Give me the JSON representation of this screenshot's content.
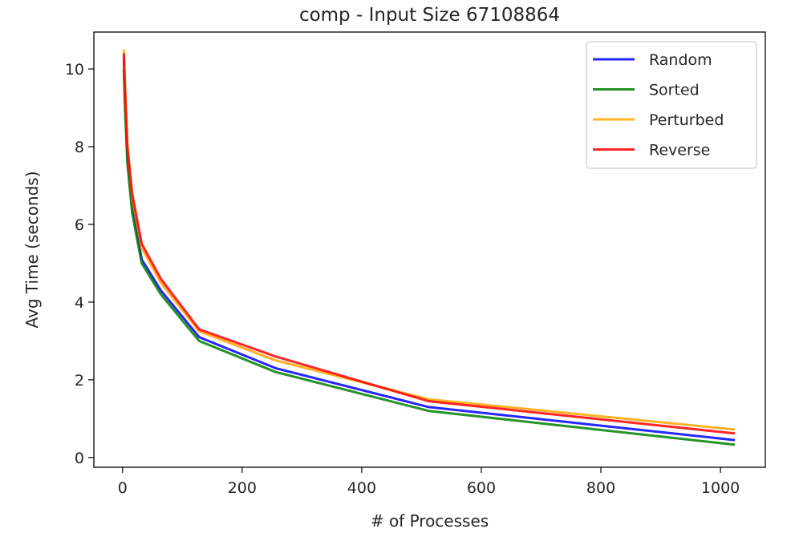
{
  "chart_data": {
    "type": "line",
    "title": "comp - Input Size 67108864",
    "xlabel": "# of Processes",
    "ylabel": "Avg Time (seconds)",
    "xlim": [
      -48,
      1075
    ],
    "ylim": [
      -0.25,
      10.95
    ],
    "xticks": [
      0,
      200,
      400,
      600,
      800,
      1000
    ],
    "yticks": [
      0,
      2,
      4,
      6,
      8,
      10
    ],
    "grid": false,
    "legend_position": "top-right",
    "x": [
      2,
      4,
      8,
      16,
      32,
      64,
      128,
      256,
      512,
      1024
    ],
    "series": [
      {
        "name": "Random",
        "color": "#0000ff",
        "values": [
          10.3,
          9.3,
          7.8,
          6.5,
          5.1,
          4.3,
          3.1,
          2.3,
          1.3,
          0.45
        ]
      },
      {
        "name": "Sorted",
        "color": "#008000",
        "values": [
          10.0,
          9.0,
          7.6,
          6.3,
          5.0,
          4.2,
          3.0,
          2.2,
          1.2,
          0.33
        ]
      },
      {
        "name": "Perturbed",
        "color": "#ffa500",
        "values": [
          10.5,
          9.6,
          8.1,
          6.7,
          5.4,
          4.5,
          3.25,
          2.5,
          1.5,
          0.72
        ]
      },
      {
        "name": "Reverse",
        "color": "#ff0000",
        "values": [
          10.4,
          9.5,
          8.0,
          6.8,
          5.5,
          4.6,
          3.3,
          2.6,
          1.45,
          0.62
        ]
      }
    ]
  }
}
